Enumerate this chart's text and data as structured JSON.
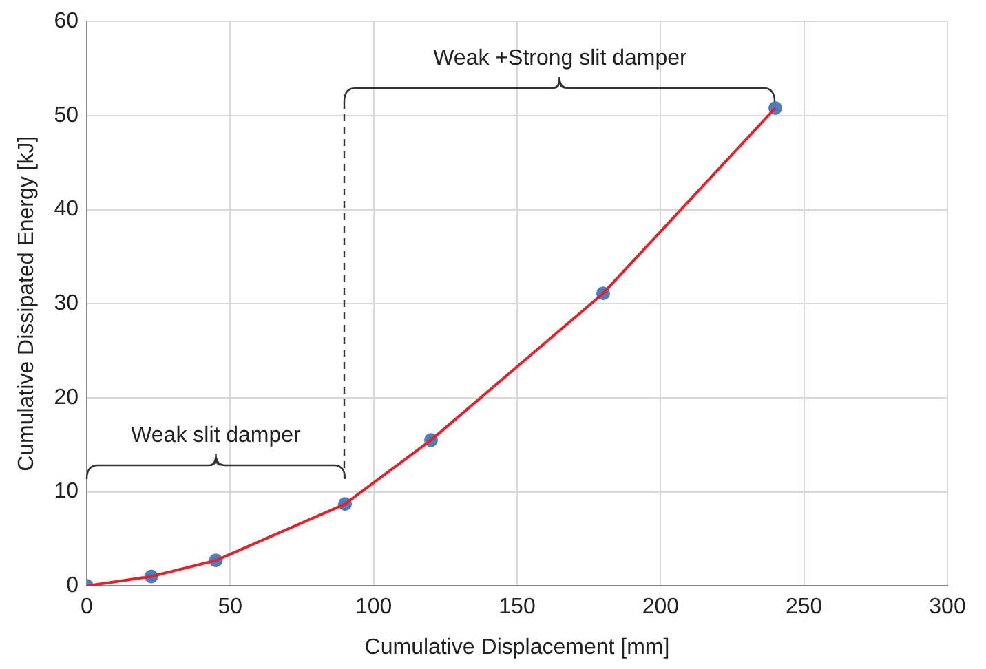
{
  "chart_data": {
    "type": "line",
    "xlabel": "Cumulative Displacement [mm]",
    "ylabel": "Cumulative Dissipated Energy [kJ]",
    "x": [
      0,
      22.5,
      45,
      90,
      120,
      180,
      240
    ],
    "series": [
      {
        "color": "#e8202a",
        "marker": "none",
        "values": [
          0,
          1.0,
          2.7,
          8.7,
          15.5,
          31.1,
          50.8
        ]
      },
      {
        "type": "scatter",
        "color": "#4a7ebf",
        "values": [
          0,
          1.0,
          2.7,
          8.7,
          15.5,
          31.1,
          50.8
        ]
      }
    ],
    "marker": "circle",
    "line_style": "solid",
    "xlim": [
      0,
      300
    ],
    "xticks": [
      0,
      50,
      100,
      150,
      200,
      250,
      300
    ],
    "ylim": [
      0,
      60
    ],
    "yticks": [
      0,
      10,
      20,
      30,
      40,
      50,
      60
    ],
    "grid": true,
    "legend": false,
    "annotations": [
      "Weak slit damper",
      "Weak +Strong slit damper"
    ]
  }
}
